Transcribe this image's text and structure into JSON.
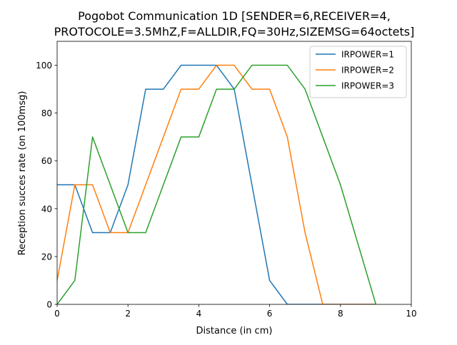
{
  "chart_data": {
    "type": "line",
    "title_line1": "Pogobot Communication 1D [SENDER=6,RECEIVER=4,",
    "title_line2": "PROTOCOLE=3.5MhZ,F=ALLDIR,FQ=30Hz,SIZEMSG=64octets]",
    "xlabel": "Distance (in cm)",
    "ylabel": "Reception succes rate (on 100msg)",
    "xlim": [
      0,
      10
    ],
    "ylim": [
      0,
      110
    ],
    "xticks": [
      "0",
      "2",
      "4",
      "6",
      "8",
      "10"
    ],
    "yticks": [
      "0",
      "20",
      "40",
      "60",
      "80",
      "100"
    ],
    "grid": false,
    "legend_position": "top-right",
    "x": [
      0,
      0.5,
      1,
      1.5,
      2,
      2.5,
      3,
      3.5,
      4,
      4.5,
      5,
      5.5,
      6,
      6.5,
      7,
      7.5,
      8,
      8.5,
      9
    ],
    "series": [
      {
        "name": "IRPOWER=1",
        "color": "#1f77b4",
        "values": [
          50,
          50,
          30,
          30,
          50,
          90,
          90,
          100,
          100,
          100,
          90,
          50,
          10,
          0,
          0,
          0,
          0,
          0,
          0
        ]
      },
      {
        "name": "IRPOWER=2",
        "color": "#ff7f0e",
        "values": [
          10,
          50,
          50,
          30,
          30,
          50,
          70,
          90,
          90,
          100,
          100,
          90,
          90,
          70,
          30,
          0,
          0,
          0,
          0
        ]
      },
      {
        "name": "IRPOWER=3",
        "color": "#2ca02c",
        "values": [
          0,
          10,
          70,
          50,
          30,
          30,
          50,
          70,
          70,
          90,
          90,
          100,
          100,
          100,
          90,
          70,
          50,
          25,
          0
        ]
      }
    ]
  }
}
